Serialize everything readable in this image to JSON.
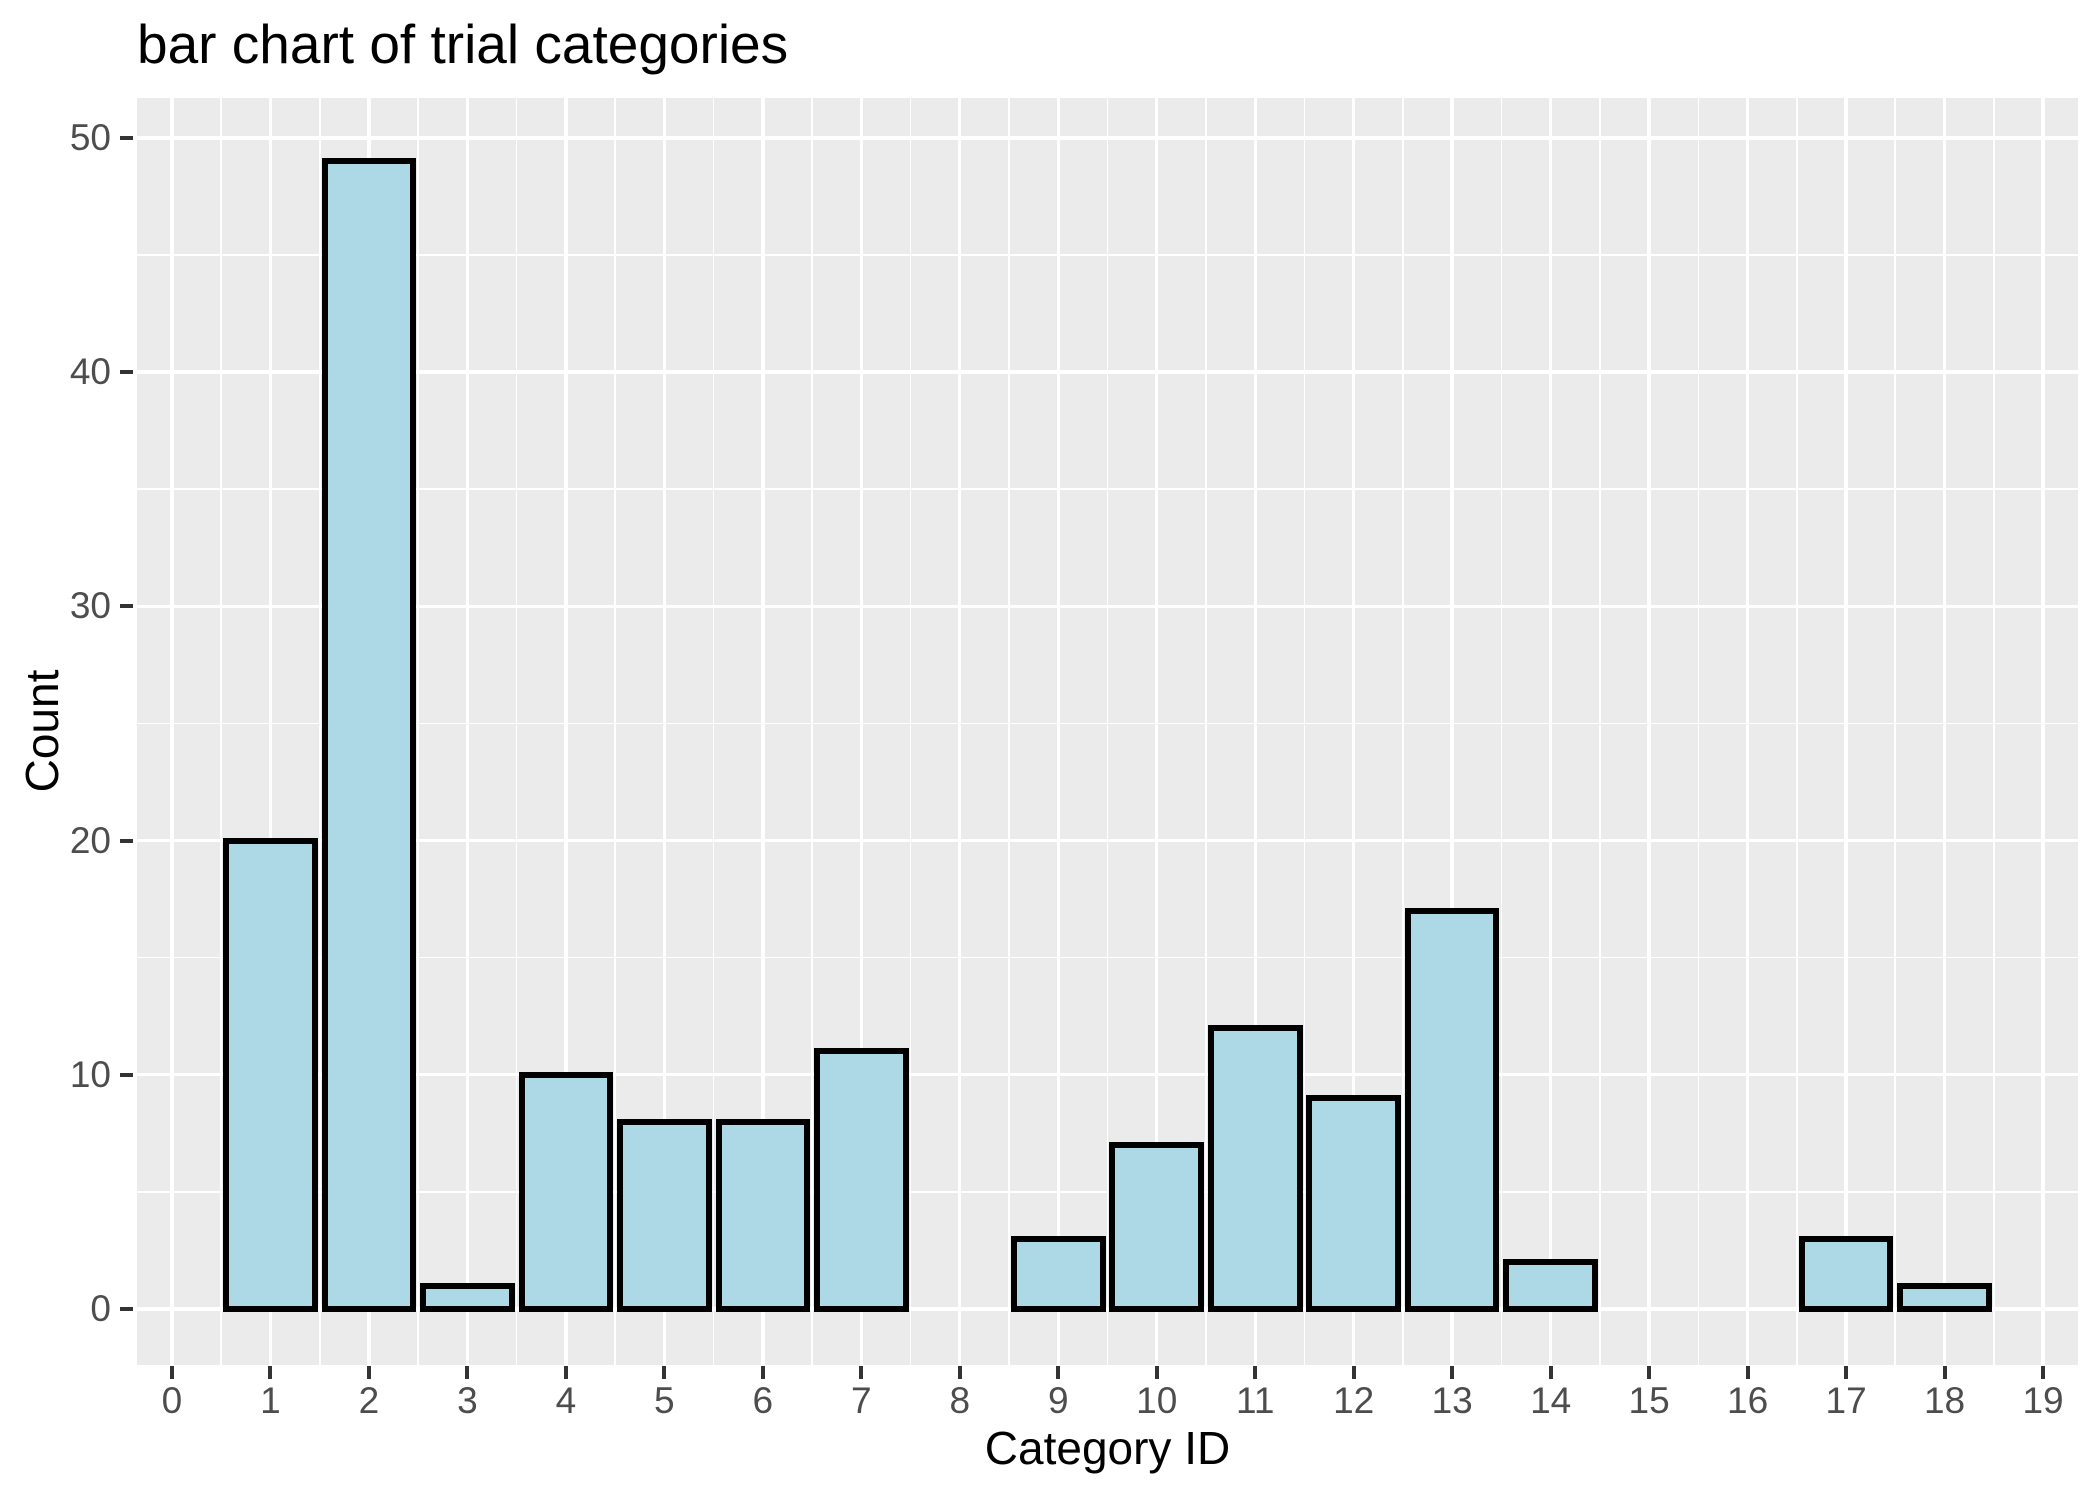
{
  "chart_data": {
    "type": "bar",
    "title": "bar chart of trial categories",
    "xlabel": "Category ID",
    "ylabel": "Count",
    "categories": [
      1,
      2,
      3,
      4,
      5,
      6,
      7,
      9,
      10,
      11,
      12,
      13,
      14,
      17,
      18
    ],
    "values": [
      20,
      49,
      1,
      10,
      8,
      8,
      11,
      3,
      7,
      12,
      9,
      17,
      2,
      3,
      1
    ],
    "bar_width": 0.9,
    "x_ticks": [
      0,
      1,
      2,
      3,
      4,
      5,
      6,
      7,
      8,
      9,
      10,
      11,
      12,
      13,
      14,
      15,
      16,
      17,
      18,
      19
    ],
    "y_ticks": [
      0,
      10,
      20,
      30,
      40,
      50
    ],
    "y_minor_ticks": [
      5,
      15,
      25,
      35,
      45
    ],
    "xlim": [
      -0.355,
      19.355
    ],
    "ylim": [
      -2.39,
      51.7
    ],
    "legend": "none",
    "grid": "major and minor white gridlines on gray panel",
    "colors": {
      "bar_fill": "#ADD8E6",
      "bar_stroke": "#000000",
      "panel_bg": "#EBEBEB",
      "gridline": "#FFFFFF",
      "tick_mark": "#333333",
      "tick_label_text": "#4D4D4D",
      "title_text": "#000000",
      "background": "#FFFFFF"
    }
  }
}
